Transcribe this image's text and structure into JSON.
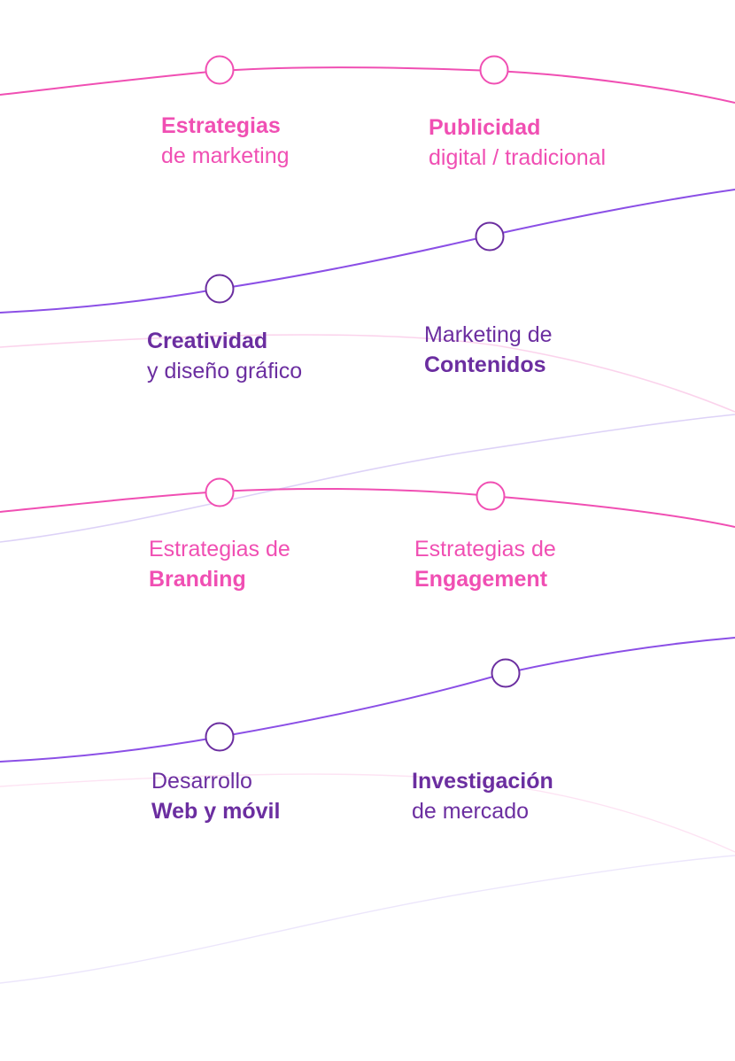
{
  "colors": {
    "pink": "#f04fb3",
    "purple": "#6b2ea0",
    "violet_line": "#8b4fe6",
    "pink_faint": "#f9c7e6",
    "violet_faint": "#ddd2f7"
  },
  "services": [
    {
      "line1": "Estrategias",
      "line2": "de marketing"
    },
    {
      "line1": "Publicidad",
      "line2": "digital / tradicional"
    },
    {
      "line1": "Creatividad",
      "line2": "y diseño gráfico"
    },
    {
      "line1": "Marketing de",
      "line2": "Contenidos"
    },
    {
      "line1": "Estrategias de",
      "line2": "Branding"
    },
    {
      "line1": "Estrategias de",
      "line2": "Engagement"
    },
    {
      "line1": "Desarrollo",
      "line2": "Web y móvil"
    },
    {
      "line1": "Investigación",
      "line2": "de mercado"
    }
  ]
}
